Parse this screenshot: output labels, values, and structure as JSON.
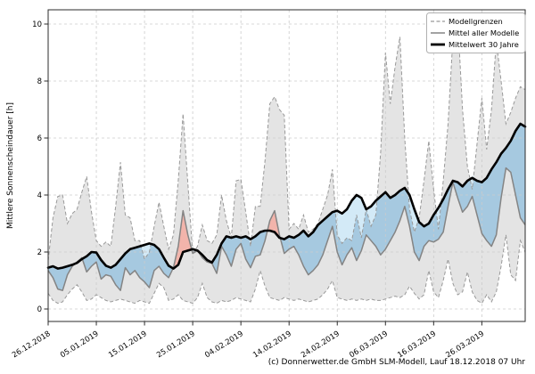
{
  "caption": "(c) Donnerwetter.de GmbH SLM-Modell, Lauf 18.12.2018 07 Uhr",
  "axes": {
    "ylabel": "Mittlere Sonnenscheindauer [h]",
    "yticks": [
      0,
      2,
      4,
      6,
      8,
      10
    ],
    "ylim": [
      -0.45,
      10.5
    ],
    "xtick_days": [
      0,
      10,
      20,
      30,
      40,
      50,
      60,
      70,
      80,
      90
    ],
    "xtick_labels": [
      "26.12.2018",
      "05.01.2019",
      "15.01.2019",
      "25.01.2019",
      "04.02.2019",
      "14.02.2019",
      "24.02.2019",
      "06.03.2019",
      "16.03.2019",
      "26.03.2019"
    ]
  },
  "legend": {
    "position": "upper right",
    "items": [
      {
        "label": "Modellgrenzen",
        "style": "dashed",
        "color": "#999999"
      },
      {
        "label": "Mittel aller Modelle",
        "style": "solid",
        "color": "#848484"
      },
      {
        "label": "Mittelwert 30 Jahre",
        "style": "solid-bold",
        "color": "#000000"
      }
    ]
  },
  "colors": {
    "envelope_fill": "#e4e4e4",
    "below_mean_fill_inside": "#a6c9e0",
    "below_mean_fill_outside": "#d3eaf7",
    "above_mean_fill": "#f2b4ab",
    "bounds_line": "#999999",
    "model_mean_line": "#848484",
    "mean30_line": "#000000",
    "grid_line": "#cbcbcb",
    "frame": "#2b2b2b"
  },
  "chart_data": {
    "type": "line",
    "title": "",
    "xlabel": "",
    "ylabel": "Mittlere Sonnenscheindauer [h]",
    "x_unit": "days from 26.12.2018",
    "n_days": 100,
    "grid": true,
    "legend_position": "upper right",
    "ylim": [
      -0.45,
      10.5
    ],
    "series": [
      {
        "name": "Modellgrenzen obere Grenze",
        "style": "dashed",
        "values": [
          1.7,
          3.2,
          3.95,
          4.0,
          3.0,
          3.35,
          3.5,
          4.1,
          4.65,
          3.4,
          2.4,
          2.2,
          2.35,
          2.2,
          3.6,
          5.15,
          3.3,
          3.2,
          2.4,
          2.4,
          1.75,
          2.0,
          2.9,
          3.75,
          2.9,
          2.1,
          2.6,
          4.5,
          6.85,
          4.4,
          1.95,
          2.2,
          2.95,
          2.4,
          2.3,
          2.6,
          4.0,
          3.1,
          2.5,
          4.5,
          4.55,
          3.4,
          2.2,
          3.6,
          3.6,
          5.2,
          7.2,
          7.45,
          7.0,
          6.8,
          2.8,
          3.0,
          2.8,
          3.3,
          2.7,
          2.8,
          3.0,
          3.5,
          4.0,
          4.9,
          2.6,
          2.3,
          2.5,
          2.4,
          3.3,
          2.5,
          3.5,
          2.9,
          3.3,
          5.5,
          9.0,
          7.2,
          8.5,
          9.55,
          6.0,
          3.5,
          2.7,
          3.2,
          4.5,
          5.9,
          4.2,
          2.8,
          4.5,
          6.5,
          9.5,
          10.2,
          7.0,
          5.0,
          4.2,
          5.8,
          7.4,
          5.6,
          7.0,
          9.4,
          8.0,
          6.5,
          6.9,
          7.4,
          7.8,
          7.7
        ]
      },
      {
        "name": "Modellgrenzen untere Grenze",
        "style": "dashed",
        "values": [
          0.55,
          0.3,
          0.2,
          0.25,
          0.5,
          0.7,
          0.85,
          0.6,
          0.3,
          0.35,
          0.5,
          0.4,
          0.3,
          0.25,
          0.3,
          0.35,
          0.3,
          0.25,
          0.2,
          0.3,
          0.25,
          0.2,
          0.55,
          0.9,
          0.75,
          0.3,
          0.35,
          0.5,
          0.3,
          0.25,
          0.2,
          0.4,
          0.9,
          0.4,
          0.25,
          0.2,
          0.3,
          0.25,
          0.3,
          0.4,
          0.35,
          0.3,
          0.25,
          0.7,
          1.35,
          0.8,
          0.4,
          0.35,
          0.3,
          0.4,
          0.35,
          0.3,
          0.35,
          0.3,
          0.25,
          0.3,
          0.35,
          0.5,
          0.7,
          1.0,
          0.4,
          0.35,
          0.3,
          0.35,
          0.3,
          0.35,
          0.3,
          0.35,
          0.3,
          0.3,
          0.35,
          0.4,
          0.45,
          0.4,
          0.5,
          0.8,
          0.55,
          0.35,
          0.5,
          1.35,
          0.6,
          0.4,
          1.0,
          1.75,
          0.9,
          0.5,
          0.6,
          1.3,
          0.6,
          0.3,
          0.2,
          0.5,
          0.25,
          0.6,
          1.5,
          2.6,
          1.2,
          1.0,
          2.4,
          2.0
        ]
      },
      {
        "name": "Mittel aller Modelle",
        "style": "solid",
        "values": [
          1.35,
          1.1,
          0.7,
          0.65,
          1.2,
          1.5,
          1.65,
          1.8,
          1.3,
          1.5,
          1.65,
          1.05,
          1.2,
          1.15,
          0.85,
          0.65,
          1.45,
          1.2,
          1.35,
          1.1,
          0.95,
          0.75,
          1.35,
          1.5,
          1.25,
          1.1,
          1.45,
          2.2,
          3.45,
          2.6,
          1.95,
          2.05,
          1.8,
          1.65,
          1.6,
          1.25,
          2.2,
          1.9,
          1.5,
          2.1,
          2.3,
          1.75,
          1.45,
          1.85,
          1.9,
          2.4,
          3.1,
          3.45,
          2.6,
          1.95,
          2.1,
          2.2,
          1.9,
          1.5,
          1.2,
          1.35,
          1.55,
          1.9,
          2.4,
          2.9,
          2.0,
          1.55,
          1.9,
          2.15,
          1.7,
          2.05,
          2.6,
          2.4,
          2.2,
          1.9,
          2.1,
          2.4,
          2.7,
          3.1,
          3.6,
          2.9,
          2.0,
          1.7,
          2.2,
          2.4,
          2.35,
          2.45,
          2.7,
          3.6,
          4.45,
          3.9,
          3.4,
          3.6,
          3.95,
          3.3,
          2.65,
          2.4,
          2.2,
          2.6,
          3.9,
          4.95,
          4.8,
          4.0,
          3.2,
          2.95
        ]
      },
      {
        "name": "Mittelwert 30 Jahre",
        "style": "solid-bold",
        "values": [
          1.45,
          1.5,
          1.42,
          1.45,
          1.5,
          1.55,
          1.62,
          1.75,
          1.85,
          2.0,
          1.98,
          1.72,
          1.52,
          1.45,
          1.55,
          1.75,
          1.95,
          2.1,
          2.15,
          2.2,
          2.25,
          2.3,
          2.25,
          2.1,
          1.8,
          1.52,
          1.42,
          1.55,
          2.0,
          2.05,
          2.1,
          2.05,
          1.9,
          1.72,
          1.63,
          1.9,
          2.3,
          2.55,
          2.5,
          2.55,
          2.5,
          2.55,
          2.45,
          2.55,
          2.7,
          2.75,
          2.75,
          2.7,
          2.5,
          2.45,
          2.55,
          2.5,
          2.6,
          2.75,
          2.55,
          2.7,
          2.95,
          3.1,
          3.25,
          3.4,
          3.45,
          3.35,
          3.5,
          3.8,
          4.0,
          3.9,
          3.5,
          3.6,
          3.8,
          3.95,
          4.1,
          3.9,
          4.0,
          4.15,
          4.25,
          4.0,
          3.5,
          3.05,
          2.9,
          3.0,
          3.3,
          3.55,
          3.85,
          4.2,
          4.5,
          4.45,
          4.3,
          4.5,
          4.6,
          4.5,
          4.45,
          4.6,
          4.9,
          5.15,
          5.45,
          5.65,
          5.9,
          6.25,
          6.5,
          6.4
        ]
      }
    ]
  }
}
